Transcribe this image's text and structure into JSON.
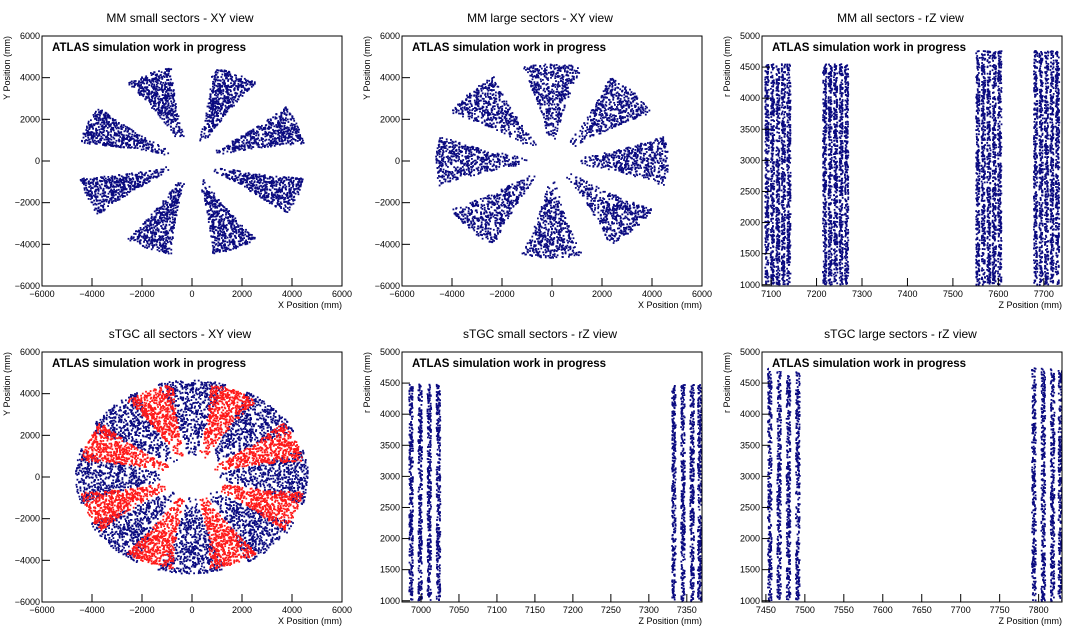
{
  "chart_data": [
    {
      "type": "scatter",
      "title": "MM small sectors - XY view",
      "xlabel": "X Position (mm)",
      "ylabel": "Y Position (mm)",
      "xlim": [
        -6000,
        6000
      ],
      "ylim": [
        -6000,
        6000
      ],
      "xticks": [
        -6000,
        -4000,
        -2000,
        0,
        2000,
        4000,
        6000
      ],
      "yticks": [
        -6000,
        -4000,
        -2000,
        0,
        2000,
        4000,
        6000
      ],
      "annotation": "ATLAS simulation work in progress",
      "series": [
        {
          "color": "#0b0b80",
          "pattern": {
            "kind": "sectors",
            "count": 8,
            "offset_deg": 22.5,
            "rmin": 950,
            "rmax": 4550,
            "half_deg": 12
          }
        }
      ]
    },
    {
      "type": "scatter",
      "title": "MM large sectors - XY view",
      "xlabel": "X Position (mm)",
      "ylabel": "Y Position (mm)",
      "xlim": [
        -6000,
        6000
      ],
      "ylim": [
        -6000,
        6000
      ],
      "xticks": [
        -6000,
        -4000,
        -2000,
        0,
        2000,
        4000,
        6000
      ],
      "yticks": [
        -6000,
        -4000,
        -2000,
        0,
        2000,
        4000,
        6000
      ],
      "annotation": "ATLAS simulation work in progress",
      "series": [
        {
          "color": "#0b0b80",
          "pattern": {
            "kind": "sectors",
            "count": 8,
            "offset_deg": 0,
            "rmin": 950,
            "rmax": 4650,
            "half_deg": 15
          }
        }
      ]
    },
    {
      "type": "scatter",
      "title": "MM all sectors - rZ view",
      "xlabel": "Z Position (mm)",
      "ylabel": "r Position (mm)",
      "xlim": [
        7080,
        7740
      ],
      "ylim": [
        980,
        5000
      ],
      "xticks": [
        7100,
        7200,
        7300,
        7400,
        7500,
        7600,
        7700
      ],
      "yticks": [
        1000,
        1500,
        2000,
        2500,
        3000,
        3500,
        4000,
        4500,
        5000
      ],
      "annotation": "ATLAS simulation work in progress",
      "series": [
        {
          "color": "#0b0b80",
          "pattern": {
            "kind": "strips",
            "z": [
              7091,
              7103,
              7115,
              7127,
              7139,
              7218,
              7230,
              7242,
              7254,
              7266,
              7555,
              7567,
              7579,
              7591,
              7603,
              7682,
              7694,
              7706,
              7718,
              7730
            ],
            "half_width": 4,
            "rmin": 1000,
            "rmax": [
              4550,
              4550,
              4550,
              4550,
              4550,
              4550,
              4550,
              4550,
              4550,
              4550,
              4760,
              4760,
              4760,
              4760,
              4760,
              4760,
              4760,
              4760,
              4760,
              4760
            ]
          }
        }
      ]
    },
    {
      "type": "scatter",
      "title": "sTGC all sectors - XY view",
      "xlabel": "X Position (mm)",
      "ylabel": "Y Position (mm)",
      "xlim": [
        -6000,
        6000
      ],
      "ylim": [
        -6000,
        6000
      ],
      "xticks": [
        -6000,
        -4000,
        -2000,
        0,
        2000,
        4000,
        6000
      ],
      "yticks": [
        -6000,
        -4000,
        -2000,
        0,
        2000,
        4000,
        6000
      ],
      "annotation": "ATLAS simulation work in progress",
      "series": [
        {
          "color": "#0b0b80",
          "pattern": {
            "kind": "sectors",
            "count": 8,
            "offset_deg": 0,
            "rmin": 950,
            "rmax": 4650,
            "half_deg": 17
          }
        },
        {
          "color": "#ff1a1a",
          "pattern": {
            "kind": "sectors",
            "count": 8,
            "offset_deg": 22.5,
            "rmin": 950,
            "rmax": 4500,
            "half_deg": 13
          }
        }
      ]
    },
    {
      "type": "scatter",
      "title": "sTGC small sectors - rZ view",
      "xlabel": "Z Position (mm)",
      "ylabel": "r Position (mm)",
      "xlim": [
        6975,
        7370
      ],
      "ylim": [
        980,
        5000
      ],
      "xticks": [
        7000,
        7050,
        7100,
        7150,
        7200,
        7250,
        7300,
        7350
      ],
      "yticks": [
        1000,
        1500,
        2000,
        2500,
        3000,
        3500,
        4000,
        4500,
        5000
      ],
      "annotation": "ATLAS simulation work in progress",
      "series": [
        {
          "color": "#0b0b80",
          "pattern": {
            "kind": "strips",
            "z": [
              6987,
              6999,
              7011,
              7023,
              7333,
              7345,
              7357,
              7367
            ],
            "half_width": 2.5,
            "rmin": 1000,
            "rmax": [
              4480,
              4480,
              4480,
              4480,
              4480,
              4480,
              4480,
              4480
            ]
          }
        }
      ]
    },
    {
      "type": "scatter",
      "title": "sTGC large sectors - rZ view",
      "xlabel": "Z Position (mm)",
      "ylabel": "r Position (mm)",
      "xlim": [
        7445,
        7830
      ],
      "ylim": [
        980,
        5000
      ],
      "xticks": [
        7450,
        7500,
        7550,
        7600,
        7650,
        7700,
        7750,
        7800
      ],
      "yticks": [
        1000,
        1500,
        2000,
        2500,
        3000,
        3500,
        4000,
        4500,
        5000
      ],
      "annotation": "ATLAS simulation work in progress",
      "series": [
        {
          "color": "#0b0b80",
          "pattern": {
            "kind": "strips",
            "z": [
              7455,
              7467,
              7479,
              7491,
              7794,
              7806,
              7818,
              7828
            ],
            "half_width": 2.5,
            "rmin": 1000,
            "rmax": [
              4740,
              4740,
              4740,
              4740,
              4740,
              4740,
              4740,
              4740
            ]
          }
        }
      ]
    }
  ]
}
